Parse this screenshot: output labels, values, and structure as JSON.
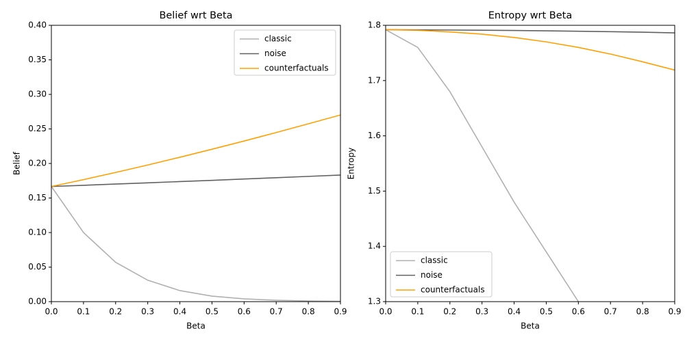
{
  "chart_data": [
    {
      "type": "line",
      "title": "Belief wrt Beta",
      "xlabel": "Beta",
      "ylabel": "Belief",
      "x": [
        0,
        0.1,
        0.2,
        0.3,
        0.4,
        0.5,
        0.6,
        0.7,
        0.8,
        0.9
      ],
      "series": [
        {
          "name": "classic",
          "color": "#b0b0b0",
          "values": [
            0.1667,
            0.1,
            0.057,
            0.031,
            0.016,
            0.008,
            0.004,
            0.002,
            0.001,
            0.0005
          ]
        },
        {
          "name": "noise",
          "color": "#616161",
          "values": [
            0.1667,
            0.1684,
            0.1702,
            0.172,
            0.1738,
            0.1756,
            0.1775,
            0.1794,
            0.1813,
            0.1832
          ]
        },
        {
          "name": "counterfactuals",
          "color": "#ffa000",
          "values": [
            0.1667,
            0.1766,
            0.187,
            0.1978,
            0.209,
            0.2206,
            0.2325,
            0.2448,
            0.2574,
            0.2702
          ]
        }
      ],
      "xlim": [
        0,
        0.9
      ],
      "ylim": [
        0,
        0.4
      ],
      "xticks": [
        {
          "value": 0,
          "label": "0.0"
        },
        0.1,
        0.2,
        0.3,
        0.4,
        0.5,
        0.6,
        0.7,
        0.8,
        0.9
      ],
      "yticks": [
        {
          "value": 0,
          "label": "0.00"
        },
        {
          "value": 0.05,
          "label": "0.05"
        },
        {
          "value": 0.1,
          "label": "0.10"
        },
        {
          "value": 0.15,
          "label": "0.15"
        },
        {
          "value": 0.2,
          "label": "0.20"
        },
        {
          "value": 0.25,
          "label": "0.25"
        },
        {
          "value": 0.3,
          "label": "0.30"
        },
        {
          "value": 0.35,
          "label": "0.35"
        },
        {
          "value": 0.4,
          "label": "0.40"
        }
      ],
      "legend": "upper-right"
    },
    {
      "type": "line",
      "title": "Entropy wrt Beta",
      "xlabel": "Beta",
      "ylabel": "Entropy",
      "x": [
        0,
        0.1,
        0.2,
        0.3,
        0.4,
        0.5,
        0.6,
        0.7,
        0.8,
        0.9
      ],
      "series": [
        {
          "name": "classic",
          "color": "#b0b0b0",
          "values": [
            1.792,
            1.76,
            1.68,
            1.58,
            1.48,
            1.39,
            1.3,
            null,
            null,
            null
          ]
        },
        {
          "name": "noise",
          "color": "#616161",
          "values": [
            1.792,
            1.7918,
            1.7915,
            1.7911,
            1.7906,
            1.79,
            1.7893,
            1.7885,
            1.7875,
            1.7863
          ]
        },
        {
          "name": "counterfactuals",
          "color": "#ffa000",
          "values": [
            1.792,
            1.791,
            1.788,
            1.784,
            1.778,
            1.77,
            1.76,
            1.748,
            1.734,
            1.719
          ]
        }
      ],
      "xlim": [
        0,
        0.9
      ],
      "ylim": [
        1.3,
        1.8
      ],
      "xticks": [
        {
          "value": 0,
          "label": "0.0"
        },
        0.1,
        0.2,
        0.3,
        0.4,
        0.5,
        0.6,
        0.7,
        0.8,
        0.9
      ],
      "yticks": [
        1.3,
        1.4,
        1.5,
        1.6,
        1.7,
        1.8
      ],
      "legend": "lower-left"
    }
  ]
}
